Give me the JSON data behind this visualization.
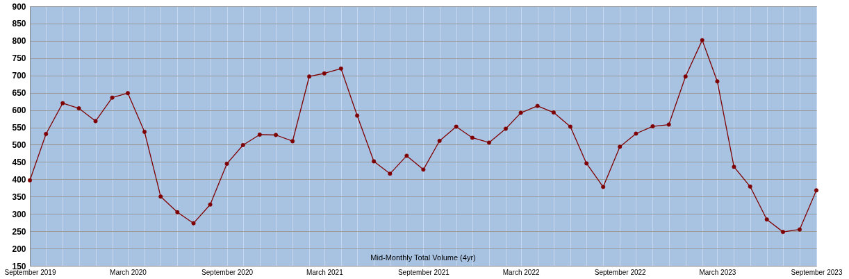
{
  "chart_data": {
    "type": "line",
    "annotations": [
      "Mid-Monthly Total Volume (4yr)"
    ],
    "x": [
      "2019-09",
      "2019-10",
      "2019-11",
      "2019-12",
      "2020-01",
      "2020-02",
      "2020-03",
      "2020-04",
      "2020-05",
      "2020-06",
      "2020-07",
      "2020-08",
      "2020-09",
      "2020-10",
      "2020-11",
      "2020-12",
      "2021-01",
      "2021-02",
      "2021-03",
      "2021-04",
      "2021-05",
      "2021-06",
      "2021-07",
      "2021-08",
      "2021-09",
      "2021-10",
      "2021-11",
      "2021-12",
      "2022-01",
      "2022-02",
      "2022-03",
      "2022-04",
      "2022-05",
      "2022-06",
      "2022-07",
      "2022-08",
      "2022-09",
      "2022-10",
      "2022-11",
      "2022-12",
      "2023-01",
      "2023-02",
      "2023-03",
      "2023-04",
      "2023-05",
      "2023-06",
      "2023-07",
      "2023-08",
      "2023-09"
    ],
    "series": [
      {
        "color": "#7f0000",
        "values": [
          397,
          531,
          620,
          605,
          568,
          636,
          649,
          537,
          350,
          305,
          273,
          327,
          445,
          499,
          529,
          528,
          510,
          697,
          706,
          720,
          584,
          452,
          416,
          468,
          428,
          511,
          552,
          520,
          506,
          546,
          592,
          612,
          593,
          552,
          446,
          378,
          494,
          532,
          553,
          558,
          697,
          802,
          683,
          436,
          379,
          284,
          248,
          255,
          368
        ]
      }
    ],
    "xlim": [
      "2019-09",
      "2023-09"
    ],
    "xticks": [
      {
        "value": "2019-09",
        "label": "September 2019"
      },
      {
        "value": "2019-10",
        "label": null
      },
      {
        "value": "2019-11",
        "label": null
      },
      {
        "value": "2019-12",
        "label": null
      },
      {
        "value": "2020-01",
        "label": null
      },
      {
        "value": "2020-02",
        "label": null
      },
      {
        "value": "2020-03",
        "label": "March 2020"
      },
      {
        "value": "2020-04",
        "label": null
      },
      {
        "value": "2020-05",
        "label": null
      },
      {
        "value": "2020-06",
        "label": null
      },
      {
        "value": "2020-07",
        "label": null
      },
      {
        "value": "2020-08",
        "label": null
      },
      {
        "value": "2020-09",
        "label": "September 2020"
      },
      {
        "value": "2020-10",
        "label": null
      },
      {
        "value": "2020-11",
        "label": null
      },
      {
        "value": "2020-12",
        "label": null
      },
      {
        "value": "2021-01",
        "label": null
      },
      {
        "value": "2021-02",
        "label": null
      },
      {
        "value": "2021-03",
        "label": "March 2021"
      },
      {
        "value": "2021-04",
        "label": null
      },
      {
        "value": "2021-05",
        "label": null
      },
      {
        "value": "2021-06",
        "label": null
      },
      {
        "value": "2021-07",
        "label": null
      },
      {
        "value": "2021-08",
        "label": null
      },
      {
        "value": "2021-09",
        "label": "September 2021"
      },
      {
        "value": "2021-10",
        "label": null
      },
      {
        "value": "2021-11",
        "label": null
      },
      {
        "value": "2021-12",
        "label": null
      },
      {
        "value": "2022-01",
        "label": null
      },
      {
        "value": "2022-02",
        "label": null
      },
      {
        "value": "2022-03",
        "label": "March 2022"
      },
      {
        "value": "2022-04",
        "label": null
      },
      {
        "value": "2022-05",
        "label": null
      },
      {
        "value": "2022-06",
        "label": null
      },
      {
        "value": "2022-07",
        "label": null
      },
      {
        "value": "2022-08",
        "label": null
      },
      {
        "value": "2022-09",
        "label": "September 2022"
      },
      {
        "value": "2022-10",
        "label": null
      },
      {
        "value": "2022-11",
        "label": null
      },
      {
        "value": "2022-12",
        "label": null
      },
      {
        "value": "2023-01",
        "label": null
      },
      {
        "value": "2023-02",
        "label": null
      },
      {
        "value": "2023-03",
        "label": "March 2023"
      },
      {
        "value": "2023-04",
        "label": null
      },
      {
        "value": "2023-05",
        "label": null
      },
      {
        "value": "2023-06",
        "label": null
      },
      {
        "value": "2023-07",
        "label": null
      },
      {
        "value": "2023-08",
        "label": null
      },
      {
        "value": "2023-09",
        "label": "September 2023"
      }
    ],
    "ylim": [
      150,
      900
    ],
    "yticks": [
      150,
      200,
      250,
      300,
      350,
      400,
      450,
      500,
      550,
      600,
      650,
      700,
      750,
      800,
      850,
      900
    ],
    "grid": true,
    "marker": "circle"
  }
}
